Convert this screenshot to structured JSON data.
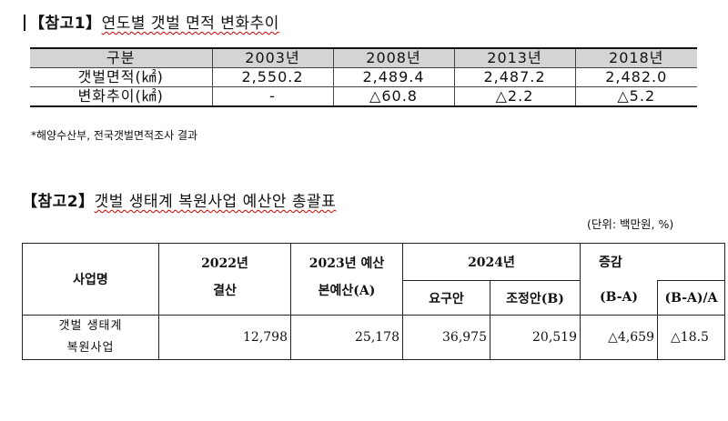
{
  "section1": {
    "ref": "【참고1】",
    "title": "연도별 갯벌 면적 변화추이",
    "table": {
      "header": [
        "구분",
        "2003년",
        "2008년",
        "2013년",
        "2018년"
      ],
      "rows": [
        [
          "갯벌면적(㎢)",
          "2,550.2",
          "2,489.4",
          "2,487.2",
          "2,482.0"
        ],
        [
          "변화추이(㎢)",
          "-",
          "△60.8",
          "△2.2",
          "△5.2"
        ]
      ]
    },
    "note": "*해양수산부, 전국갯벌면적조사 결과"
  },
  "section2": {
    "ref": "【참고2】",
    "title": "갯벌 생태계 복원사업 예산안 총괄표",
    "unit": "(단위: 백만원, %)",
    "table": {
      "h_name": "사업명",
      "h_2022_line1": "2022년",
      "h_2022_line2": "결산",
      "h_2023_line1": "2023년 예산",
      "h_2023_line2": "본예산(A)",
      "h_2024": "2024년",
      "h_2024_req": "요구안",
      "h_2024_adj": "조정안(B)",
      "h_diff": "증감",
      "h_diff_ba": "(B-A)",
      "h_diff_ratio": "(B-A)/A",
      "row": {
        "name_line1": "갯벌 생태계",
        "name_line2": "복원사업",
        "v2022": "12,798",
        "v2023": "25,178",
        "v2024_req": "36,975",
        "v2024_adj": "20,519",
        "diff": "△4,659",
        "ratio": "△18.5"
      }
    }
  }
}
